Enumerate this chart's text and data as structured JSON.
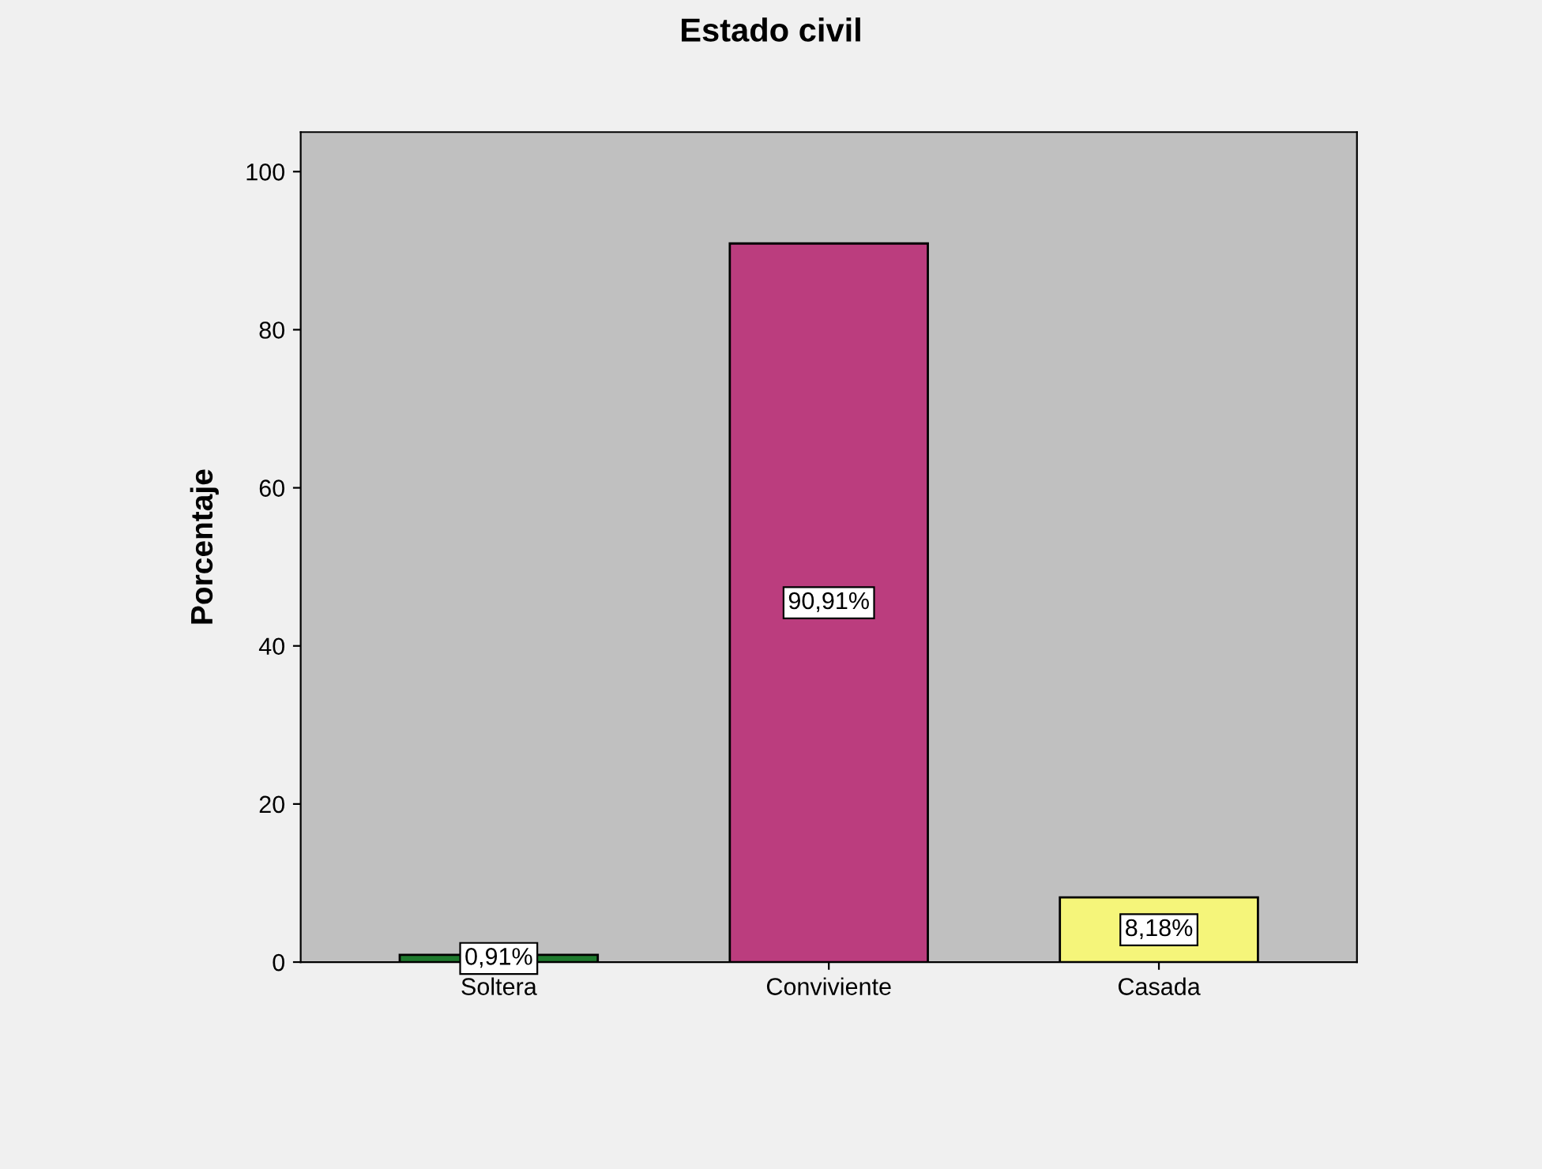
{
  "chart_data": {
    "type": "bar",
    "title": "Estado civil",
    "ylabel": "Porcentaje",
    "categories": [
      "Soltera",
      "Conviviente",
      "Casada"
    ],
    "values": [
      0.91,
      90.91,
      8.18
    ],
    "colors": [
      "#1f7a2e",
      "#bb3d7e",
      "#f5f57a"
    ],
    "value_labels": [
      "0,91%",
      "90,91%",
      "8,18%"
    ],
    "ylim": [
      0,
      105
    ],
    "yticks": [
      0,
      20,
      40,
      60,
      80,
      100
    ],
    "grid": false,
    "legend": false
  }
}
